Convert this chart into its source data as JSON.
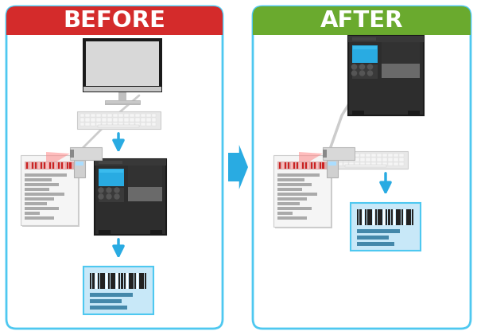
{
  "title_before": "BEFORE",
  "title_after": "AFTER",
  "before_header_color": "#d42b2b",
  "after_header_color": "#6aaa2e",
  "header_text_color": "#ffffff",
  "panel_border_color": "#4ec8f0",
  "arrow_color": "#29abe2",
  "label_bg_color": "#c8e8f8",
  "barcode_color": "#333333",
  "printer_dark": "#2d2d2d",
  "printer_mid": "#404040",
  "printer_blue": "#29abe2",
  "printer_gray": "#808080",
  "monitor_frame": "#1a1a1a",
  "monitor_bg": "#d8d8d8",
  "monitor_stand": "#c0c0c0",
  "keyboard_bg": "#e8e8e8",
  "keyboard_key": "#f5f5f5",
  "doc_bg": "#f5f5f5",
  "doc_line": "#aaaaaa",
  "doc_barcode_bg": "#cc3333",
  "scanner_body": "#d8d8d8",
  "scanner_beam": "#ff6666"
}
